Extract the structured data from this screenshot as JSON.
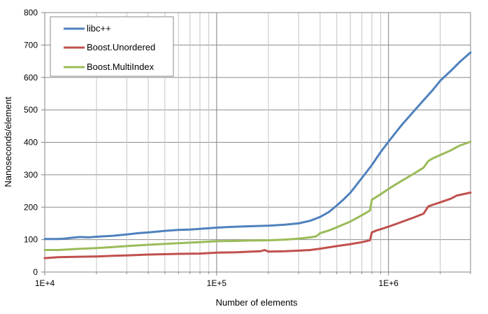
{
  "chart_data": {
    "type": "line",
    "xlabel": "Number of elements",
    "ylabel": "Nanoseconds/element",
    "xscale": "log",
    "xlim": [
      10000,
      3000000
    ],
    "ylim": [
      0,
      800
    ],
    "grid": true,
    "legend_position": "top-left",
    "x_ticks": [
      {
        "value": 10000,
        "label": "1E+4"
      },
      {
        "value": 100000,
        "label": "1E+5"
      },
      {
        "value": 1000000,
        "label": "1E+6"
      }
    ],
    "y_ticks": [
      {
        "value": 0,
        "label": "0"
      },
      {
        "value": 100,
        "label": "100"
      },
      {
        "value": 200,
        "label": "200"
      },
      {
        "value": 300,
        "label": "300"
      },
      {
        "value": 400,
        "label": "400"
      },
      {
        "value": 500,
        "label": "500"
      },
      {
        "value": 600,
        "label": "600"
      },
      {
        "value": 700,
        "label": "700"
      },
      {
        "value": 800,
        "label": "800"
      }
    ],
    "series": [
      {
        "name": "libc++",
        "color": "#4F81BD",
        "points": [
          [
            10000,
            102
          ],
          [
            12000,
            102
          ],
          [
            13000,
            103
          ],
          [
            14000,
            105
          ],
          [
            16000,
            108
          ],
          [
            18000,
            107
          ],
          [
            20000,
            109
          ],
          [
            25000,
            112
          ],
          [
            30000,
            116
          ],
          [
            35000,
            120
          ],
          [
            40000,
            122
          ],
          [
            50000,
            127
          ],
          [
            60000,
            130
          ],
          [
            70000,
            131
          ],
          [
            80000,
            133
          ],
          [
            100000,
            137
          ],
          [
            120000,
            139
          ],
          [
            150000,
            141
          ],
          [
            200000,
            143
          ],
          [
            250000,
            146
          ],
          [
            300000,
            150
          ],
          [
            350000,
            158
          ],
          [
            400000,
            170
          ],
          [
            450000,
            185
          ],
          [
            500000,
            205
          ],
          [
            550000,
            225
          ],
          [
            600000,
            245
          ],
          [
            650000,
            268
          ],
          [
            700000,
            290
          ],
          [
            800000,
            330
          ],
          [
            900000,
            370
          ],
          [
            1000000,
            402
          ],
          [
            1100000,
            430
          ],
          [
            1200000,
            455
          ],
          [
            1400000,
            495
          ],
          [
            1600000,
            530
          ],
          [
            1800000,
            560
          ],
          [
            2000000,
            590
          ],
          [
            2300000,
            620
          ],
          [
            2600000,
            648
          ],
          [
            3000000,
            677
          ]
        ]
      },
      {
        "name": "Boost.Unordered",
        "color": "#C0504D",
        "points": [
          [
            10000,
            43
          ],
          [
            12000,
            46
          ],
          [
            15000,
            47
          ],
          [
            20000,
            48
          ],
          [
            25000,
            50
          ],
          [
            30000,
            51
          ],
          [
            40000,
            54
          ],
          [
            50000,
            55
          ],
          [
            60000,
            56
          ],
          [
            80000,
            57
          ],
          [
            100000,
            60
          ],
          [
            130000,
            61
          ],
          [
            160000,
            63
          ],
          [
            180000,
            64
          ],
          [
            190000,
            68
          ],
          [
            200000,
            63
          ],
          [
            250000,
            64
          ],
          [
            300000,
            66
          ],
          [
            350000,
            68
          ],
          [
            400000,
            72
          ],
          [
            500000,
            80
          ],
          [
            600000,
            86
          ],
          [
            700000,
            92
          ],
          [
            780000,
            98
          ],
          [
            800000,
            122
          ],
          [
            850000,
            128
          ],
          [
            900000,
            132
          ],
          [
            1000000,
            140
          ],
          [
            1200000,
            155
          ],
          [
            1400000,
            168
          ],
          [
            1600000,
            180
          ],
          [
            1700000,
            202
          ],
          [
            1800000,
            207
          ],
          [
            2000000,
            215
          ],
          [
            2300000,
            226
          ],
          [
            2500000,
            236
          ],
          [
            3000000,
            245
          ]
        ]
      },
      {
        "name": "Boost.MultiIndex",
        "color": "#9BBB59",
        "points": [
          [
            10000,
            68
          ],
          [
            12000,
            68
          ],
          [
            15000,
            71
          ],
          [
            20000,
            74
          ],
          [
            25000,
            77
          ],
          [
            30000,
            80
          ],
          [
            40000,
            84
          ],
          [
            50000,
            87
          ],
          [
            60000,
            89
          ],
          [
            80000,
            92
          ],
          [
            100000,
            95
          ],
          [
            130000,
            96
          ],
          [
            150000,
            97
          ],
          [
            200000,
            98
          ],
          [
            250000,
            100
          ],
          [
            300000,
            103
          ],
          [
            350000,
            107
          ],
          [
            380000,
            110
          ],
          [
            400000,
            120
          ],
          [
            450000,
            128
          ],
          [
            500000,
            138
          ],
          [
            600000,
            156
          ],
          [
            700000,
            175
          ],
          [
            780000,
            190
          ],
          [
            800000,
            223
          ],
          [
            900000,
            240
          ],
          [
            1000000,
            256
          ],
          [
            1100000,
            270
          ],
          [
            1200000,
            282
          ],
          [
            1400000,
            303
          ],
          [
            1600000,
            322
          ],
          [
            1700000,
            342
          ],
          [
            1800000,
            350
          ],
          [
            2000000,
            361
          ],
          [
            2300000,
            375
          ],
          [
            2600000,
            390
          ],
          [
            3000000,
            402
          ]
        ]
      }
    ]
  }
}
